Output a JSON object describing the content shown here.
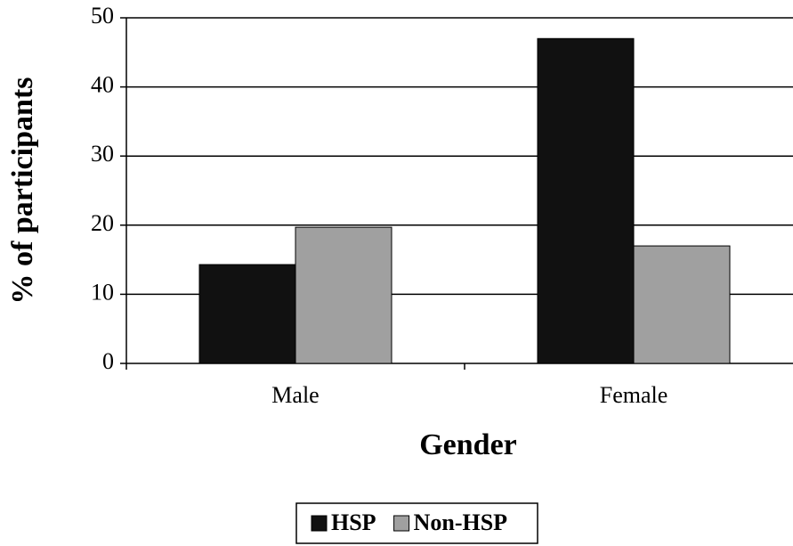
{
  "chart_data": {
    "type": "bar",
    "y_label": "% of participants",
    "x_label": "Gender",
    "categories": [
      "Male",
      "Female"
    ],
    "series": [
      {
        "name": "HSP",
        "color": "#111111",
        "values": [
          14.3,
          47.0
        ]
      },
      {
        "name": "Non-HSP",
        "color": "#a0a0a0",
        "values": [
          19.7,
          17.0
        ]
      }
    ],
    "ylim": [
      0,
      50
    ],
    "yticks": [
      0,
      10,
      20,
      30,
      40,
      50
    ],
    "grid": true,
    "legend": "bottom"
  }
}
